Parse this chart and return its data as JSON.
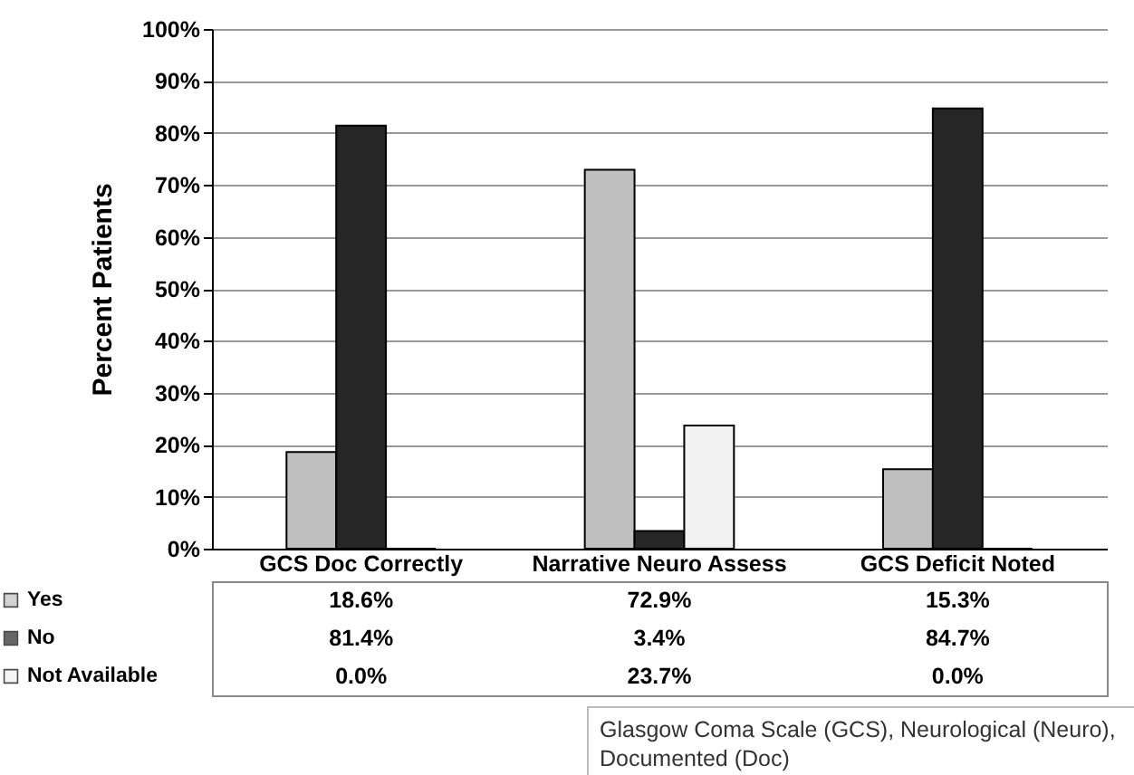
{
  "chart_data": {
    "type": "bar",
    "ylabel": "Percent Patients",
    "categories": [
      "GCS Doc Correctly",
      "Narrative Neuro Assess",
      "GCS Deficit Noted"
    ],
    "series": [
      {
        "name": "Yes",
        "color": "#bfbfbf",
        "values": [
          18.6,
          72.9,
          15.3
        ],
        "value_labels": [
          "18.6%",
          "72.9%",
          "15.3%"
        ]
      },
      {
        "name": "No",
        "color": "#262626",
        "values": [
          81.4,
          3.4,
          84.7
        ],
        "value_labels": [
          "81.4%",
          "3.4%",
          "84.7%"
        ]
      },
      {
        "name": "Not Available",
        "color": "#f2f2f2",
        "values": [
          0.0,
          23.7,
          0.0
        ],
        "value_labels": [
          "0.0%",
          "23.7%",
          "0.0%"
        ]
      }
    ],
    "ylim": [
      0,
      100
    ],
    "yticks": [
      {
        "value": 0,
        "label": "0%"
      },
      {
        "value": 10,
        "label": "10%"
      },
      {
        "value": 20,
        "label": "20%"
      },
      {
        "value": 30,
        "label": "30%"
      },
      {
        "value": 40,
        "label": "40%"
      },
      {
        "value": 50,
        "label": "50%"
      },
      {
        "value": 60,
        "label": "60%"
      },
      {
        "value": 70,
        "label": "70%"
      },
      {
        "value": 80,
        "label": "80%"
      },
      {
        "value": 90,
        "label": "90%"
      },
      {
        "value": 100,
        "label": "100%"
      }
    ],
    "grid": "y",
    "legend": "bottom",
    "annotations": [
      "Glasgow Coma Scale (GCS), Neurological (Neuro), Documented (Doc)"
    ]
  }
}
